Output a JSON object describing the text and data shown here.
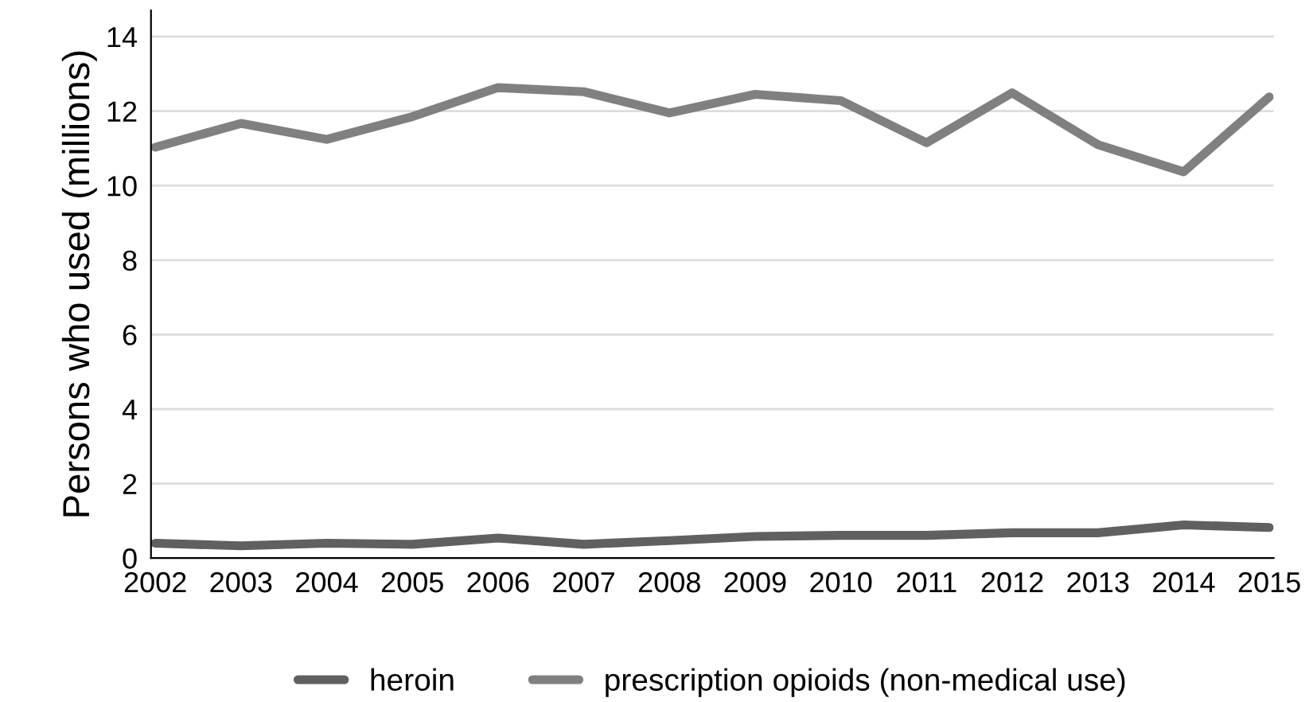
{
  "chart_data": {
    "type": "line",
    "ylabel": "Persons who used (millions)",
    "categories": [
      "2002",
      "2003",
      "2004",
      "2005",
      "2006",
      "2007",
      "2008",
      "2009",
      "2010",
      "2011",
      "2012",
      "2013",
      "2014",
      "2015"
    ],
    "series": [
      {
        "name": "heroin",
        "color": "#606060",
        "values": [
          0.4,
          0.33,
          0.4,
          0.37,
          0.54,
          0.37,
          0.47,
          0.58,
          0.61,
          0.61,
          0.68,
          0.68,
          0.89,
          0.82
        ]
      },
      {
        "name": "prescription opioids (non-medical use)",
        "color": "#808080",
        "values": [
          11.03,
          11.67,
          11.24,
          11.85,
          12.63,
          12.52,
          11.95,
          12.45,
          12.28,
          11.15,
          12.49,
          11.1,
          10.37,
          12.38
        ]
      }
    ],
    "ylim": [
      0,
      14.7
    ],
    "yticks": [
      0,
      2,
      4,
      6,
      8,
      10,
      12,
      14
    ],
    "grid": "y",
    "legend": "bottom",
    "marker": "none",
    "line_style": "solid"
  }
}
